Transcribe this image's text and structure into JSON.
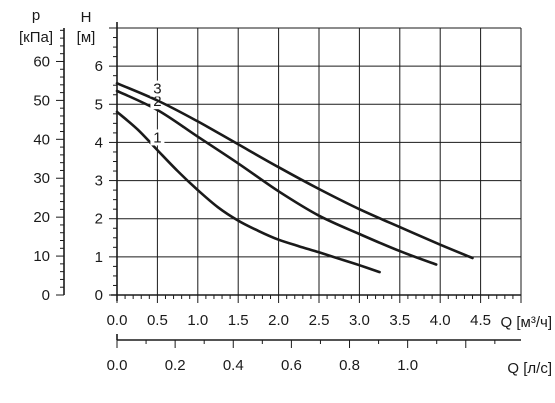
{
  "chart_data": {
    "type": "line",
    "title": "",
    "grid": true,
    "axes": {
      "x_primary": {
        "label": "Q [м³/ч]",
        "range": [
          0,
          5.0
        ],
        "ticks": [
          "0.0",
          "0.5",
          "1.0",
          "1.5",
          "2.0",
          "2.5",
          "3.0",
          "3.5",
          "4.0",
          "4.5"
        ],
        "tick_values": [
          0,
          0.5,
          1.0,
          1.5,
          2.0,
          2.5,
          3.0,
          3.5,
          4.0,
          4.5
        ]
      },
      "x_secondary": {
        "label": "Q [л/с]",
        "range": [
          0,
          1.39
        ],
        "ticks": [
          "0.0",
          "0.2",
          "0.4",
          "0.6",
          "0.8",
          "1.0"
        ],
        "tick_values": [
          0,
          0.2,
          0.4,
          0.6,
          0.8,
          1.0
        ]
      },
      "y_primary": {
        "symbol": "H",
        "unit": "[м]",
        "range": [
          0,
          7
        ],
        "ticks": [
          "0",
          "1",
          "2",
          "3",
          "4",
          "5",
          "6"
        ],
        "tick_values": [
          0,
          1,
          2,
          3,
          4,
          5,
          6
        ]
      },
      "y_secondary": {
        "symbol": "p",
        "unit": "[кПа]",
        "range": [
          0,
          68.6
        ],
        "ticks": [
          "0",
          "10",
          "20",
          "30",
          "40",
          "50",
          "60"
        ],
        "tick_values": [
          0,
          10,
          20,
          30,
          40,
          50,
          60
        ]
      }
    },
    "series": [
      {
        "label": "1",
        "color": "#1a1a1a",
        "points": [
          [
            0.0,
            4.8
          ],
          [
            0.25,
            4.35
          ],
          [
            0.5,
            3.8
          ],
          [
            0.75,
            3.25
          ],
          [
            1.0,
            2.75
          ],
          [
            1.25,
            2.3
          ],
          [
            1.5,
            1.95
          ],
          [
            1.75,
            1.68
          ],
          [
            2.0,
            1.45
          ],
          [
            2.25,
            1.28
          ],
          [
            2.5,
            1.12
          ],
          [
            2.75,
            0.95
          ],
          [
            3.0,
            0.78
          ],
          [
            3.25,
            0.6
          ]
        ]
      },
      {
        "label": "2",
        "color": "#1a1a1a",
        "points": [
          [
            0.0,
            5.35
          ],
          [
            0.5,
            4.85
          ],
          [
            1.0,
            4.15
          ],
          [
            1.5,
            3.45
          ],
          [
            2.0,
            2.72
          ],
          [
            2.5,
            2.08
          ],
          [
            3.0,
            1.6
          ],
          [
            3.5,
            1.15
          ],
          [
            3.95,
            0.8
          ]
        ]
      },
      {
        "label": "3",
        "color": "#1a1a1a",
        "points": [
          [
            0.0,
            5.55
          ],
          [
            0.5,
            5.1
          ],
          [
            1.0,
            4.55
          ],
          [
            1.5,
            3.95
          ],
          [
            2.0,
            3.35
          ],
          [
            2.5,
            2.78
          ],
          [
            3.0,
            2.25
          ],
          [
            3.5,
            1.78
          ],
          [
            4.0,
            1.32
          ],
          [
            4.4,
            0.97
          ]
        ]
      }
    ]
  }
}
